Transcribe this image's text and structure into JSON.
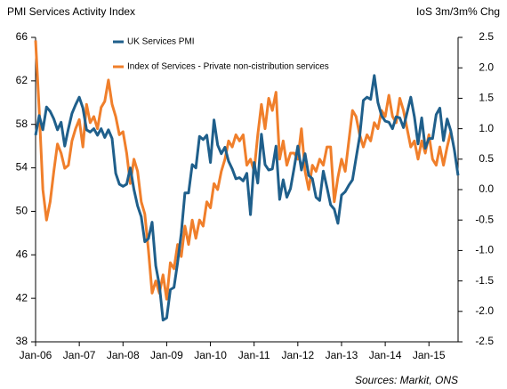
{
  "chart_data": {
    "type": "line",
    "title": "PMI Services Activity Index",
    "y2_label": "IoS 3m/3m% Chg",
    "source": "Sources: Markit, ONS",
    "categories": [
      "Jan-06",
      null,
      null,
      null,
      null,
      null,
      null,
      null,
      null,
      null,
      null,
      null,
      "Jan-07",
      null,
      null,
      null,
      null,
      null,
      null,
      null,
      null,
      null,
      null,
      null,
      "Jan-08",
      null,
      null,
      null,
      null,
      null,
      null,
      null,
      null,
      null,
      null,
      null,
      "Jan-09",
      null,
      null,
      null,
      null,
      null,
      null,
      null,
      null,
      null,
      null,
      null,
      "Jan-10",
      null,
      null,
      null,
      null,
      null,
      null,
      null,
      null,
      null,
      null,
      null,
      "Jan-11",
      null,
      null,
      null,
      null,
      null,
      null,
      null,
      null,
      null,
      null,
      null,
      "Jan-12",
      null,
      null,
      null,
      null,
      null,
      null,
      null,
      null,
      null,
      null,
      null,
      "Jan-13",
      null,
      null,
      null,
      null,
      null,
      null,
      null,
      null,
      null,
      null,
      null,
      "Jan-14",
      null,
      null,
      null,
      null,
      null,
      null,
      null,
      null,
      null,
      null,
      null,
      "Jan-15",
      null,
      null,
      null,
      null,
      null,
      null,
      null,
      null
    ],
    "series": [
      {
        "name": "UK Services PMI",
        "color": "#1f5f8b",
        "values": [
          57.0,
          58.8,
          57.5,
          59.6,
          59.2,
          58.5,
          57.5,
          58.2,
          56.0,
          57.6,
          59.0,
          59.8,
          60.5,
          59.5,
          57.5,
          57.3,
          57.6,
          57.0,
          57.6,
          56.8,
          57.5,
          56.7,
          53.5,
          52.5,
          52.3,
          52.5,
          54.0,
          52.0,
          50.5,
          49.5,
          47.2,
          47.5,
          49.0,
          45.0,
          43.2,
          40.0,
          40.2,
          42.8,
          43.0,
          45.3,
          48.0,
          51.7,
          51.7,
          54.3,
          54.0,
          56.9,
          56.6,
          57.0,
          54.5,
          58.4,
          56.1,
          55.3,
          55.9,
          54.6,
          53.9,
          53.0,
          53.1,
          52.8,
          53.5,
          49.7,
          54.5,
          52.6,
          57.1,
          54.3,
          53.8,
          53.9,
          56.0,
          51.1,
          52.9,
          51.3,
          52.1,
          54.0,
          56.0,
          53.8,
          55.3,
          53.3,
          53.0,
          51.3,
          51.0,
          53.7,
          52.2,
          50.6,
          50.2,
          48.9,
          51.5,
          51.8,
          52.4,
          52.9,
          54.9,
          56.9,
          60.2,
          60.5,
          60.3,
          62.5,
          60.0,
          58.8,
          58.3,
          58.2,
          57.6,
          58.7,
          58.6,
          57.7,
          59.1,
          60.5,
          58.7,
          56.2,
          58.6,
          55.8,
          56.7,
          56.7,
          58.9,
          59.5,
          56.5,
          58.5,
          57.4,
          55.6,
          53.3
        ]
      },
      {
        "name": "Index of Services - Private non-cistribution services",
        "color": "#f07f2b",
        "axis": "y2",
        "values": [
          2.45,
          1.3,
          0.0,
          -0.5,
          -0.2,
          0.3,
          0.75,
          0.6,
          0.35,
          0.4,
          0.8,
          1.0,
          1.15,
          0.7,
          1.4,
          1.1,
          1.2,
          1.0,
          1.35,
          1.45,
          1.8,
          1.4,
          1.2,
          0.9,
          0.95,
          0.6,
          0.1,
          0.5,
          0.3,
          -0.2,
          -0.4,
          -1.0,
          -1.7,
          -1.5,
          -1.7,
          -1.4,
          -1.8,
          -1.2,
          -1.3,
          -0.9,
          -1.1,
          -0.6,
          -0.9,
          -0.5,
          -0.8,
          -0.5,
          -0.6,
          -0.2,
          -0.3,
          0.1,
          0.0,
          0.3,
          0.5,
          0.8,
          0.7,
          0.9,
          0.8,
          0.9,
          0.4,
          0.5,
          0.3,
          0.9,
          1.4,
          1.0,
          1.5,
          1.3,
          1.6,
          0.5,
          0.8,
          0.4,
          0.6,
          0.6,
          0.5,
          1.0,
          0.3,
          0.0,
          0.4,
          0.3,
          0.5,
          0.4,
          0.7,
          0.7,
          -0.2,
          0.2,
          0.5,
          0.3,
          0.8,
          1.3,
          1.2,
          0.9,
          0.7,
          0.9,
          0.8,
          1.1,
          1.0,
          1.3,
          1.2,
          1.55,
          1.2,
          1.1,
          1.5,
          1.3,
          1.0,
          0.7,
          0.8,
          0.5,
          0.8,
          0.6,
          0.9,
          0.5,
          0.4,
          0.7,
          0.4,
          0.7,
          0.95,
          null,
          null
        ]
      }
    ],
    "ylim": [
      38,
      66
    ],
    "yticks": [
      38,
      42,
      46,
      50,
      54,
      58,
      62,
      66
    ],
    "y2lim": [
      -2.5,
      2.5
    ],
    "y2ticks": [
      -2.5,
      {
        "value": -2,
        "label": "-2.0"
      },
      -1.5,
      {
        "value": -1,
        "label": "-1.0"
      },
      -0.5,
      {
        "value": 0,
        "label": "0.0"
      },
      0.5,
      {
        "value": 1,
        "label": "1.0"
      },
      1.5,
      {
        "value": 2,
        "label": "2.0"
      },
      2.5
    ],
    "grid": false
  }
}
